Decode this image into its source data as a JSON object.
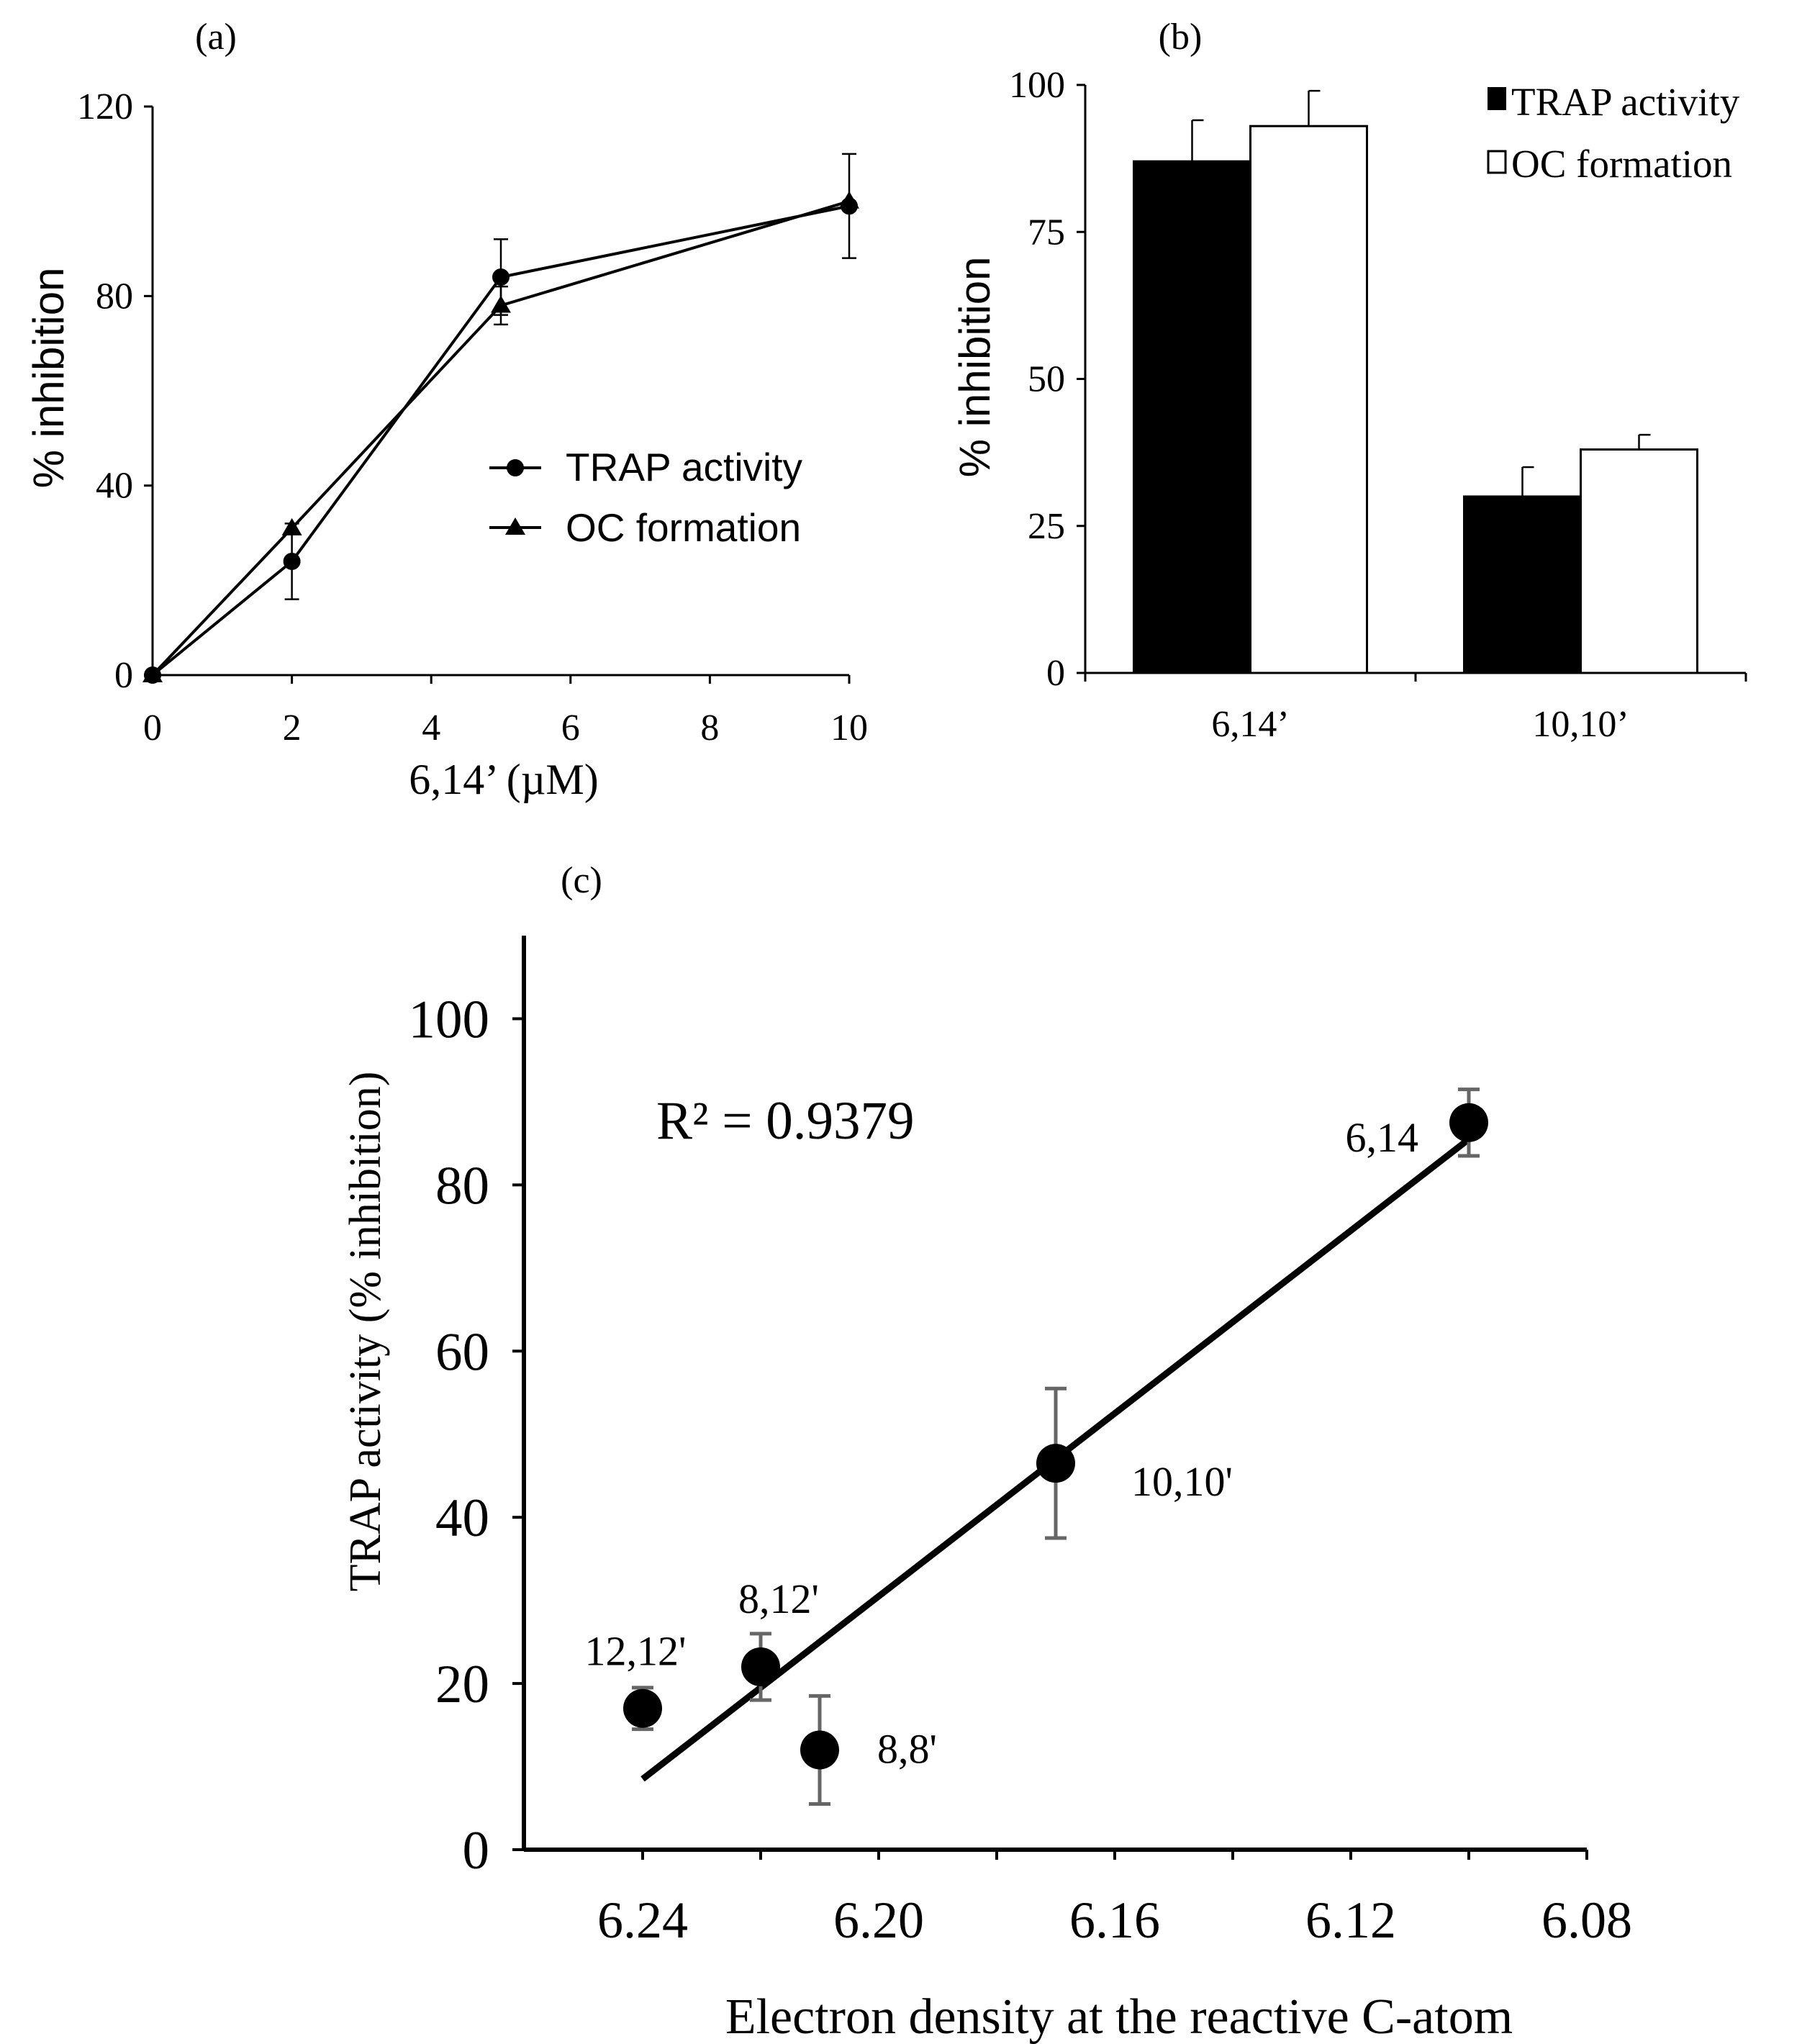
{
  "chart_data": [
    {
      "panel": "(a)",
      "panel_label": "(a)",
      "type": "line",
      "xlabel": "6,14’ (µM)",
      "ylabel": "% inhibition",
      "xlim": [
        0,
        10
      ],
      "ylim": [
        0,
        120
      ],
      "xticks": [
        0,
        2,
        4,
        6,
        8,
        10
      ],
      "yticks": [
        0,
        40,
        80,
        120
      ],
      "series": [
        {
          "name": "TRAP activity",
          "marker": "circle",
          "x": [
            0,
            2,
            5,
            10
          ],
          "values": [
            0,
            24,
            84,
            99
          ],
          "errors": [
            0,
            8,
            8,
            11
          ]
        },
        {
          "name": "OC formation",
          "marker": "triangle",
          "x": [
            0,
            2,
            5,
            10
          ],
          "values": [
            0,
            31,
            78,
            100
          ],
          "errors": [
            0,
            0,
            4,
            0
          ]
        }
      ]
    },
    {
      "panel": "(b)",
      "panel_label": "(b)",
      "type": "bar",
      "ylabel": "% inhibition",
      "categories": [
        "6,14’",
        "10,10’"
      ],
      "ylim": [
        0,
        100
      ],
      "yticks": [
        0,
        25,
        50,
        75,
        100
      ],
      "series": [
        {
          "name": "TRAP activity",
          "fill": "#000000",
          "values": [
            87,
            30
          ],
          "errors": [
            7,
            5
          ]
        },
        {
          "name": "OC formation",
          "fill": "#ffffff",
          "values": [
            93,
            38
          ],
          "errors": [
            6,
            2.5
          ]
        }
      ]
    },
    {
      "panel": "(c)",
      "panel_label": "(c)",
      "type": "scatter",
      "xlabel": "Electron density at the reactive C-atom",
      "ylabel": "TRAP activity (% inhibition)",
      "xlim": [
        6.26,
        6.08
      ],
      "ylim": [
        0,
        110
      ],
      "xticks": [
        "6.24",
        "6.20",
        "6.16",
        "6.12",
        "6.08"
      ],
      "yticks": [
        0,
        20,
        40,
        60,
        80,
        100
      ],
      "annotation": "R² = 0.9379",
      "points": [
        {
          "label": "12,12'",
          "x": 6.24,
          "y": 17,
          "err": 2.5
        },
        {
          "label": "8,12'",
          "x": 6.22,
          "y": 22,
          "err": 4
        },
        {
          "label": "8,8'",
          "x": 6.21,
          "y": 12,
          "err": 6.5
        },
        {
          "label": "10,10'",
          "x": 6.17,
          "y": 46.5,
          "err": 9
        },
        {
          "label": "6,14",
          "x": 6.1,
          "y": 87.5,
          "err": 4
        }
      ],
      "fit": {
        "x": [
          6.24,
          6.1
        ],
        "y": [
          8.5,
          85.5
        ]
      }
    }
  ]
}
